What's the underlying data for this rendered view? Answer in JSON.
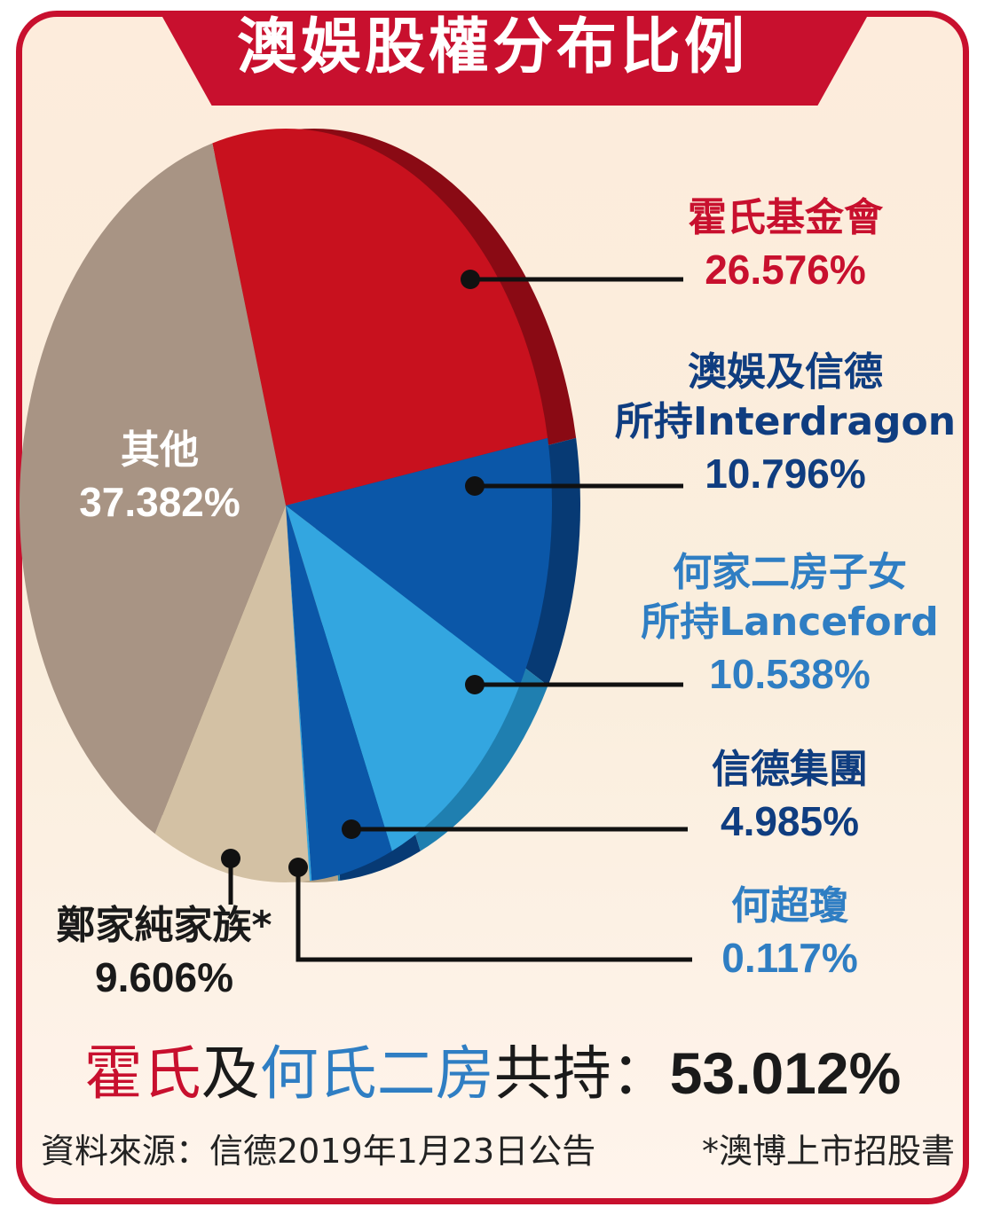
{
  "title": "澳娛股權分布比例",
  "colors": {
    "frame_red": "#c8102e",
    "label_red": "#c8102e",
    "label_darkblue": "#0f3d80",
    "label_lightblue": "#2f7ec3",
    "label_black": "#1a1a1a",
    "label_white": "#ffffff",
    "leader_line": "#111111"
  },
  "chart_data": {
    "type": "pie",
    "title": "澳娛股權分布比例",
    "unit": "%",
    "slices": [
      {
        "name": "霍氏基金會",
        "value": 26.576,
        "label": "26.576%",
        "color": "#c8111e",
        "side_color": "#8a0a14",
        "label_color": "#c8102e"
      },
      {
        "name": "澳娛及信德所持Interdragon",
        "name_lines": [
          "澳娛及信德",
          "所持Interdragon"
        ],
        "value": 10.796,
        "label": "10.796%",
        "color": "#0b57a8",
        "side_color": "#073a74",
        "label_color": "#0f3d80"
      },
      {
        "name": "何家二房子女所持Lanceford",
        "name_lines": [
          "何家二房子女",
          "所持Lanceford"
        ],
        "value": 10.538,
        "label": "10.538%",
        "color": "#33a6e0",
        "side_color": "#1f7fb0",
        "label_color": "#2f7ec3"
      },
      {
        "name": "信德集團",
        "value": 4.985,
        "label": "4.985%",
        "color": "#0b57a8",
        "side_color": "#073a74",
        "label_color": "#0f3d80"
      },
      {
        "name": "何超瓊",
        "value": 0.117,
        "label": "0.117%",
        "color": "#33a6e0",
        "side_color": "#1f7fb0",
        "label_color": "#2f7ec3"
      },
      {
        "name": "鄭家純家族*",
        "value": 9.606,
        "label": "9.606%",
        "color": "#d3c1a4",
        "side_color": "#b3a184",
        "label_color": "#1a1a1a"
      },
      {
        "name": "其他",
        "value": 37.382,
        "label": "37.382%",
        "color": "#a89484",
        "side_color": "#8a7767",
        "label_color": "#ffffff"
      }
    ]
  },
  "summary": {
    "part1": "霍氏",
    "part2": "及",
    "part3": "何氏二房",
    "part4": "共持：",
    "value": "53.012%"
  },
  "source": {
    "text": "資料來源：信德2019年1月23日公告",
    "note": "*澳博上市招股書"
  }
}
